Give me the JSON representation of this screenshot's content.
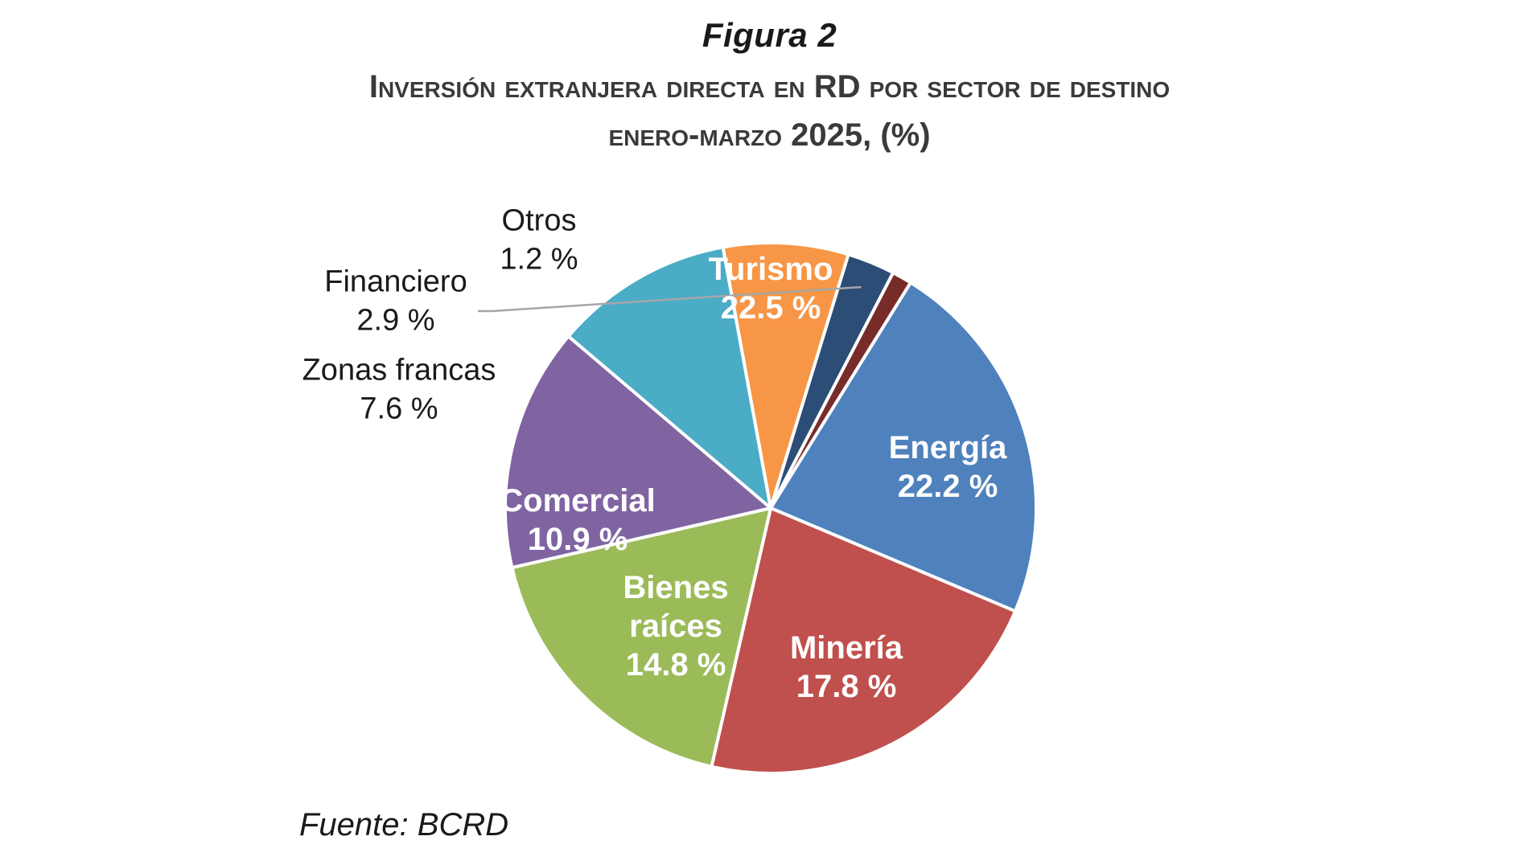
{
  "figure": {
    "label": "Figura 2",
    "title_line1": "Inversión extranjera directa en RD por sector de destino",
    "title_line2": "enero-marzo 2025, (%)",
    "source": "Fuente: BCRD"
  },
  "chart_data": {
    "type": "pie",
    "title": "Inversión extranjera directa en RD por sector de destino enero-marzo 2025, (%)",
    "unit": "%",
    "start_angle_deg": 31.8,
    "direction": "clockwise",
    "slices": [
      {
        "label": [
          "Turismo"
        ],
        "value": 22.5,
        "value_label": "22.5 %",
        "color": "#4F81BD",
        "label_style": "inside"
      },
      {
        "label": [
          "Energía"
        ],
        "value": 22.2,
        "value_label": "22.2 %",
        "color": "#C0504D",
        "label_style": "inside"
      },
      {
        "label": [
          "Minería"
        ],
        "value": 17.8,
        "value_label": "17.8 %",
        "color": "#9BBB59",
        "label_style": "inside"
      },
      {
        "label": [
          "Bienes",
          "raíces"
        ],
        "value": 14.8,
        "value_label": "14.8 %",
        "color": "#8064A2",
        "label_style": "inside"
      },
      {
        "label": [
          "Comercial"
        ],
        "value": 10.9,
        "value_label": "10.9 %",
        "color": "#4BACC6",
        "label_style": "inside"
      },
      {
        "label": [
          "Zonas francas"
        ],
        "value": 7.6,
        "value_label": "7.6 %",
        "color": "#F79646",
        "label_style": "outside"
      },
      {
        "label": [
          "Financiero"
        ],
        "value": 2.9,
        "value_label": "2.9 %",
        "color": "#2C4D75",
        "label_style": "outside-leader"
      },
      {
        "label": [
          "Otros"
        ],
        "value": 1.2,
        "value_label": "1.2 %",
        "color": "#772C2A",
        "label_style": "outside"
      }
    ]
  }
}
